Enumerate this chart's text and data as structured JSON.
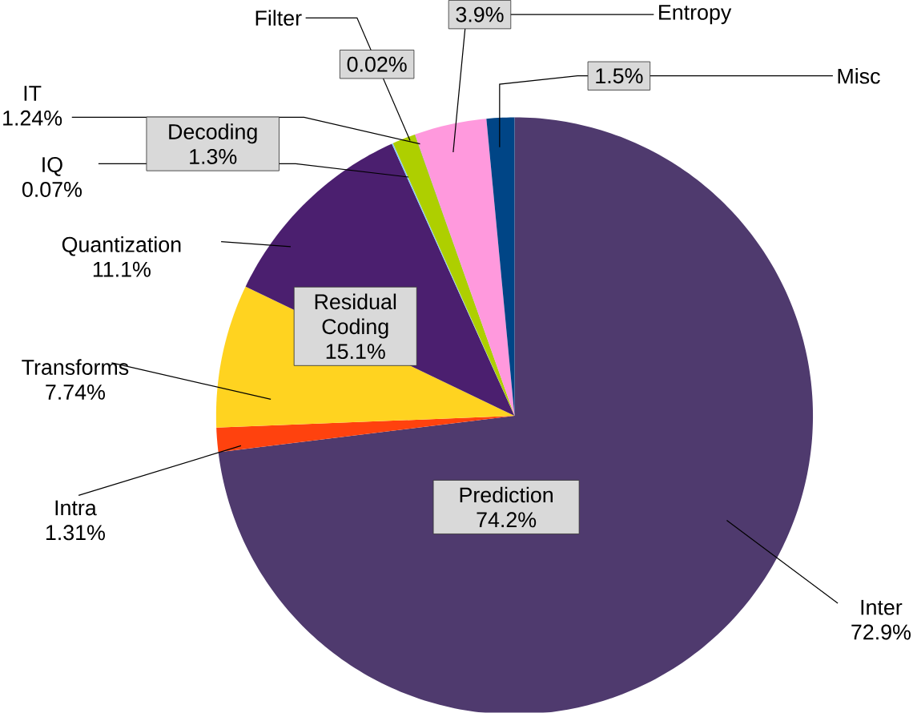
{
  "chart_data": {
    "type": "pie",
    "categories": [
      "Inter",
      "Intra",
      "Transforms",
      "Quantization",
      "IQ",
      "IT",
      "Filter",
      "Entropy",
      "Misc"
    ],
    "values": [
      72.9,
      1.31,
      7.74,
      11.1,
      0.07,
      1.24,
      0.02,
      3.9,
      1.5
    ],
    "value_labels": [
      "72.9%",
      "1.31%",
      "7.74%",
      "11.1%",
      "0.07%",
      "1.24%",
      "0.02%",
      "3.9%",
      "1.5%"
    ],
    "colors": [
      "#4f3a6e",
      "#ff420e",
      "#ffd320",
      "#4b1f6f",
      "#83caff",
      "#aecf00",
      "#579d1c",
      "#ff99dd",
      "#004586"
    ],
    "annotations": [
      "Decoding 1.3%",
      "Residual Coding 15.1%",
      "Prediction 74.2%"
    ]
  }
}
